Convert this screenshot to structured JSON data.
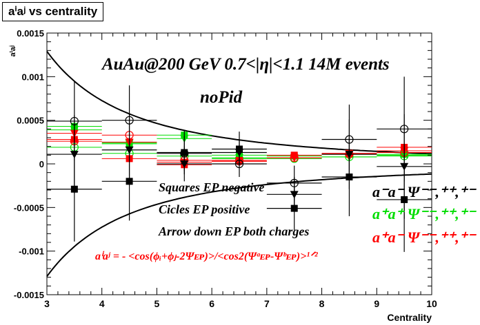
{
  "chart_data": {
    "type": "scatter",
    "title": "aⁱaʲ vs centrality",
    "xlabel": "Centrality",
    "ylabel": "aⁱaʲ",
    "xlim": [
      3,
      10
    ],
    "ylim": [
      -0.0015,
      0.0015
    ],
    "x_ticks": [
      "3",
      "4",
      "5",
      "6",
      "7",
      "8",
      "9",
      "10"
    ],
    "y_ticks": [
      "-0.0015",
      "-0.001",
      "-0.0005",
      "0",
      "0.0005",
      "0.001",
      "0.0015"
    ],
    "grid": false,
    "x": [
      3.5,
      4.5,
      5.5,
      6.5,
      7.5,
      8.5,
      9.5
    ],
    "x_err": [
      0.5,
      0.5,
      0.5,
      0.5,
      0.5,
      0.5,
      0.5
    ],
    "annotations": [
      "AuAu@200 GeV 0.7<|η|<1.1 14M events",
      "noPid",
      "Squares EP negative",
      "Cicles EP positive",
      "Arrow down EP both charges"
    ],
    "formula": {
      "lhs": "aⁱaʲ",
      "rhs": " = - <cos(ϕᵢ+ϕⱼ-2Ψᴇᴘ)>/<cos2(Ψᵃᴇᴘ-Ψᵇᴇᴘ)>¹ᐟ²"
    },
    "legend": [
      {
        "label": "a⁻a⁻  Ψ⁻⁻,⁺⁺,⁺⁻",
        "color": "#000000"
      },
      {
        "label": "a⁺a⁺  Ψ⁻⁻,⁺⁺,⁺⁻",
        "color": "#00dd00"
      },
      {
        "label": "a⁺a⁻  Ψ⁻⁻,⁺⁺,⁺⁻",
        "color": "#ff0000"
      }
    ],
    "curves": [
      {
        "type": "envelope",
        "color": "#000000"
      }
    ],
    "series": [
      {
        "color": "#000000",
        "marker": "square",
        "values": [
          -0.00029,
          -0.0002,
          0.00013,
          0.00017,
          -0.00051,
          -0.00015,
          -0.00041
        ],
        "errors": [
          0.0006,
          0.00045,
          0.00025,
          0.0002,
          0.00025,
          0.00045,
          0.0006
        ]
      },
      {
        "color": "#000000",
        "marker": "circle-open",
        "values": [
          0.00049,
          0.0005,
          0.00012,
          0.0,
          -0.00022,
          0.00028,
          0.0004
        ],
        "errors": [
          0.00045,
          0.0004,
          0.0002,
          0.00015,
          0.0002,
          0.0004,
          0.0006
        ]
      },
      {
        "color": "#000000",
        "marker": "triangle-down",
        "values": [
          0.00011,
          0.00016,
          0.0,
          0.00013,
          -0.00035,
          0.00011,
          -3e-05
        ],
        "errors": [
          0.00045,
          0.0004,
          0.0002,
          0.00015,
          0.0002,
          0.0004,
          0.0006
        ]
      },
      {
        "color": "#00dd00",
        "marker": "square",
        "values": [
          0.00043,
          0.00023,
          0.00033,
          0.0001,
          9e-05,
          0.00011,
          0.00011
        ],
        "errors": [
          2e-05,
          2e-05,
          2e-05,
          2e-05,
          2e-05,
          2e-05,
          2e-05
        ]
      },
      {
        "color": "#00dd00",
        "marker": "circle-open",
        "values": [
          0.00019,
          0.00012,
          9e-05,
          6e-05,
          6e-05,
          8e-05,
          9e-05
        ],
        "errors": [
          2e-05,
          2e-05,
          2e-05,
          2e-05,
          2e-05,
          2e-05,
          2e-05
        ]
      },
      {
        "color": "#00dd00",
        "marker": "triangle-down",
        "values": [
          0.00039,
          0.00024,
          0.00029,
          7e-05,
          7e-05,
          8e-05,
          0.0001
        ],
        "errors": [
          2e-05,
          2e-05,
          2e-05,
          2e-05,
          2e-05,
          2e-05,
          2e-05
        ]
      },
      {
        "color": "#ff0000",
        "marker": "square",
        "values": [
          0.00028,
          6e-05,
          -1e-05,
          4e-05,
          0.0001,
          0.00012,
          0.00019
        ],
        "errors": [
          2e-05,
          2e-05,
          2e-05,
          2e-05,
          2e-05,
          2e-05,
          2e-05
        ]
      },
      {
        "color": "#ff0000",
        "marker": "circle-open",
        "values": [
          0.00026,
          0.00033,
          4e-05,
          3e-05,
          7e-05,
          0.00011,
          0.00013
        ],
        "errors": [
          2e-05,
          2e-05,
          2e-05,
          2e-05,
          2e-05,
          2e-05,
          2e-05
        ]
      },
      {
        "color": "#ff0000",
        "marker": "triangle-down",
        "values": [
          0.00035,
          0.00025,
          2e-05,
          3e-05,
          7e-05,
          0.00012,
          0.00015
        ],
        "errors": [
          2e-05,
          2e-05,
          2e-05,
          2e-05,
          2e-05,
          2e-05,
          2e-05
        ]
      }
    ]
  }
}
